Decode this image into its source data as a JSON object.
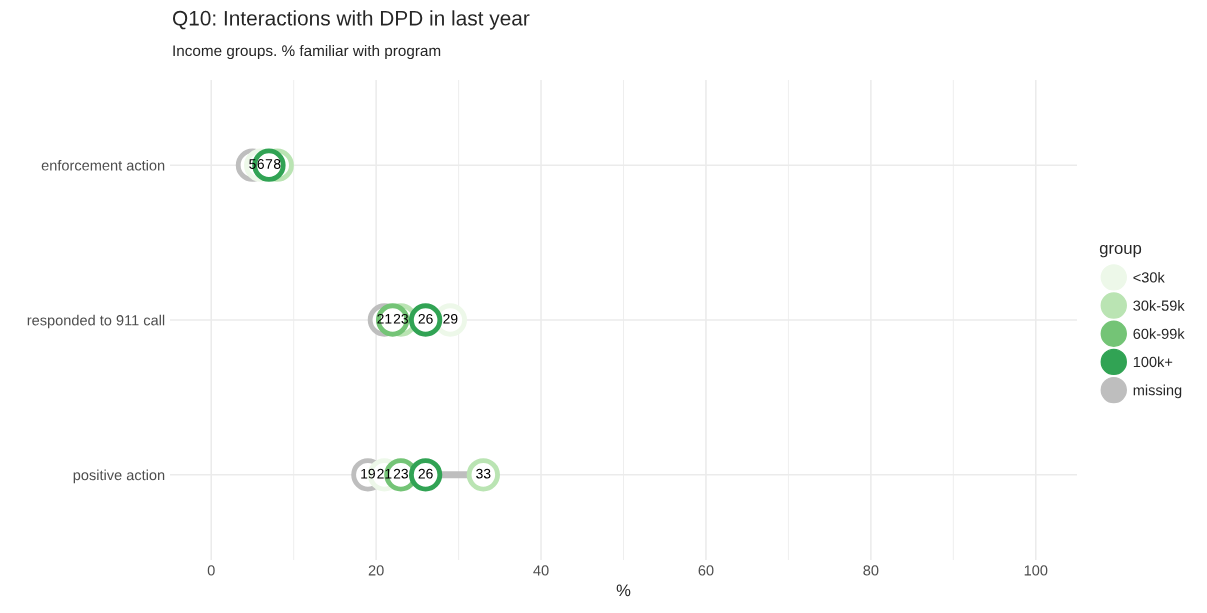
{
  "chart_data": {
    "type": "scatter",
    "orientation": "horizontal",
    "title": "Q10: Interactions with DPD in last year",
    "subtitle": "Income groups. % familiar with program",
    "xlabel": "%",
    "legend_title": "group",
    "categories": [
      "enforcement action",
      "responded to 911 call",
      "positive action"
    ],
    "series": [
      {
        "name": "<30k",
        "color": "#edf8e9",
        "values": [
          6,
          29,
          21
        ]
      },
      {
        "name": "30k-59k",
        "color": "#bae4b3",
        "values": [
          8,
          23,
          33
        ]
      },
      {
        "name": "60k-99k",
        "color": "#74c476",
        "values": [
          null,
          22,
          23
        ],
        "value_labels": [
          null,
          null,
          "23"
        ]
      },
      {
        "name": "100k+",
        "color": "#31a354",
        "values": [
          7,
          26,
          26
        ]
      },
      {
        "name": "missing",
        "color": "#bebebe",
        "values": [
          5,
          21,
          19
        ]
      }
    ],
    "xlim": [
      -5,
      105
    ],
    "xticks": [
      0,
      20,
      40,
      60,
      80,
      100
    ],
    "grid": true,
    "legend": "right",
    "marker": "circle",
    "line_style": "solid",
    "data_labels": true
  }
}
